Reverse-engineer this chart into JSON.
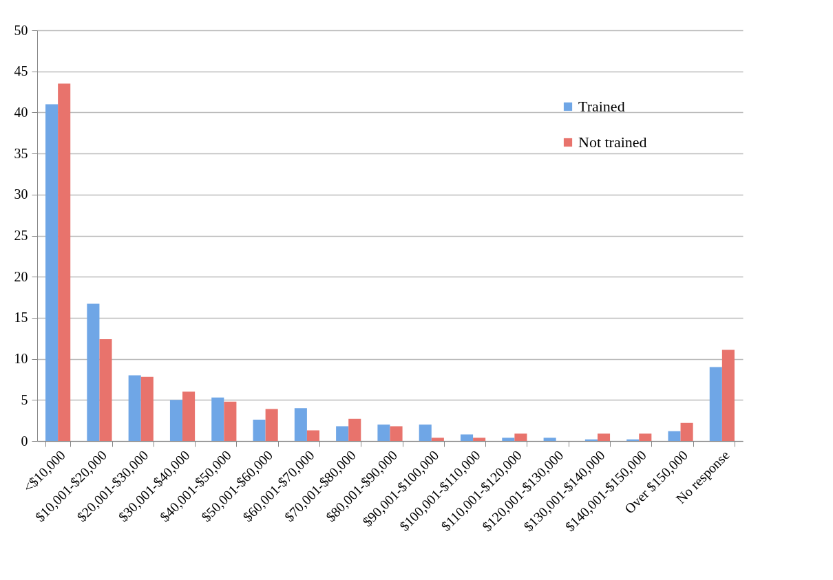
{
  "chart_data": {
    "type": "bar",
    "categories": [
      "<$10,000",
      "$10,001-$20,000",
      "$20,001-$30,000",
      "$30,001-$40,000",
      "$40,001-$50,000",
      "$50,001-$60,000",
      "$60,001-$70,000",
      "$70,001-$80,000",
      "$80,001-$90,000",
      "$90,001-$100,000",
      "$100,001-$110,000",
      "$110,001-$120,000",
      "$120,001-$130,000",
      "$130,001-$140,000",
      "$140,001-$150,000",
      "Over $150,000",
      "No response"
    ],
    "series": [
      {
        "name": "Trained",
        "color": "#6fa6e6",
        "values": [
          41,
          16.7,
          8,
          5,
          5.3,
          2.6,
          4,
          1.8,
          2,
          2,
          0.8,
          0.4,
          0.4,
          0.2,
          0.2,
          1.2,
          9
        ]
      },
      {
        "name": "Not trained",
        "color": "#e8736c",
        "values": [
          43.5,
          12.4,
          7.8,
          6,
          4.8,
          3.9,
          1.3,
          2.7,
          1.8,
          0.4,
          0.4,
          0.9,
          0,
          0.9,
          0.9,
          2.2,
          11.1
        ]
      }
    ],
    "ylim": [
      0,
      50
    ],
    "yticks": [
      0,
      5,
      10,
      15,
      20,
      25,
      30,
      35,
      40,
      45,
      50
    ],
    "grid": "y",
    "legend": "top right"
  }
}
